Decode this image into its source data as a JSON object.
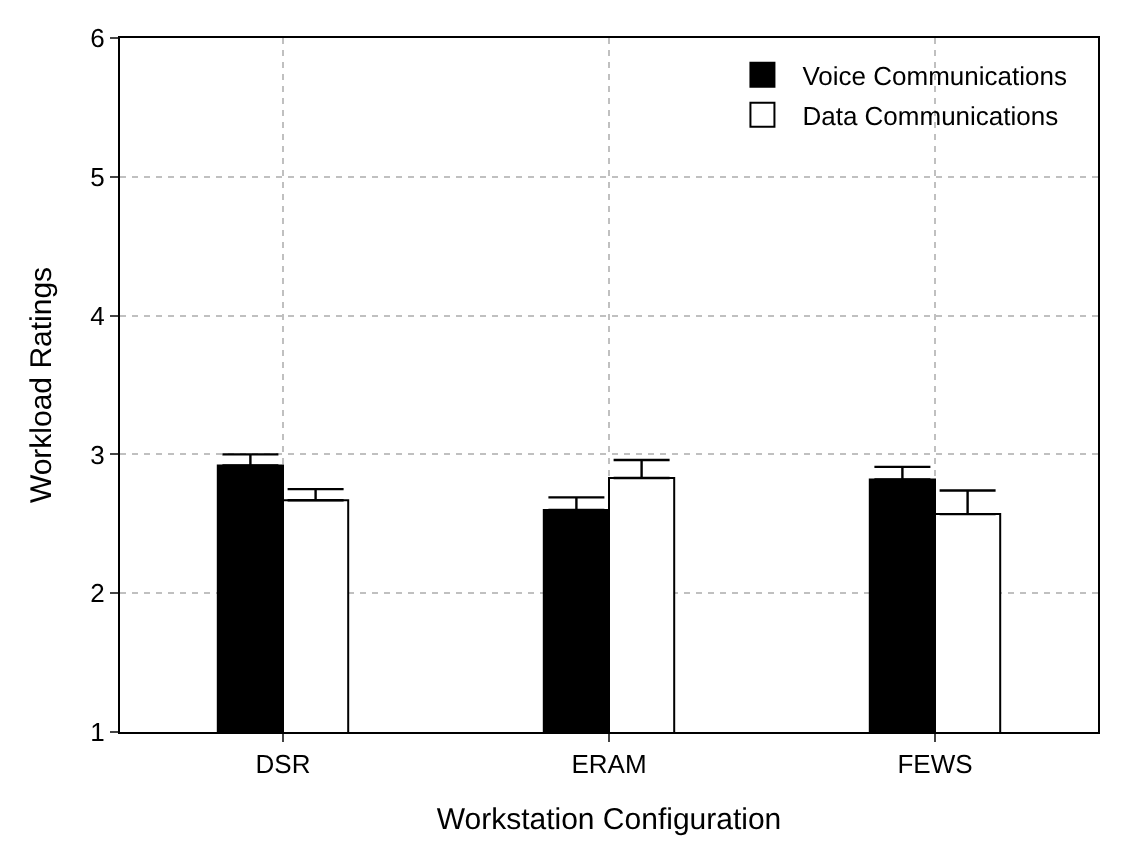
{
  "chart_data": {
    "type": "bar",
    "xlabel": "Workstation Configuration",
    "ylabel": "Workload Ratings",
    "categories": [
      "DSR",
      "ERAM",
      "FEWS"
    ],
    "series": [
      {
        "name": "Voice Communications",
        "color": "#000000",
        "values": [
          2.92,
          2.6,
          2.82
        ],
        "errors": [
          [
            2.92,
            3.0
          ],
          [
            2.6,
            2.69
          ],
          [
            2.82,
            2.91
          ]
        ]
      },
      {
        "name": "Data Communications",
        "color": "#ffffff",
        "values": [
          2.67,
          2.83,
          2.57
        ],
        "errors": [
          [
            2.67,
            2.75
          ],
          [
            2.83,
            2.96
          ],
          [
            2.57,
            2.74
          ]
        ]
      }
    ],
    "ylim": [
      1,
      6
    ],
    "yticks": [
      1,
      2,
      3,
      4,
      5,
      6
    ],
    "grid": true,
    "legend": "top right"
  }
}
